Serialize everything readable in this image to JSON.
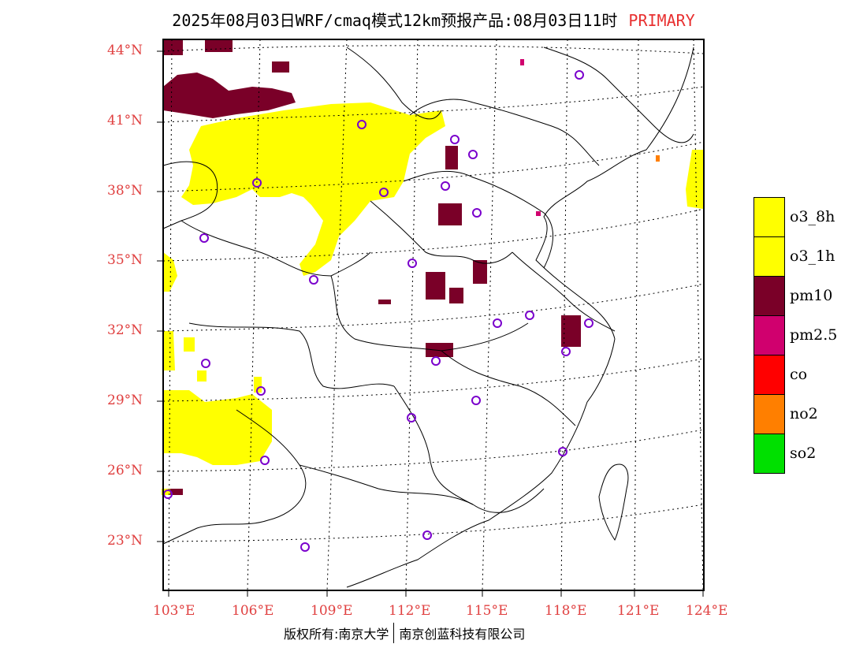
{
  "title": {
    "main": "2025年08月03日WRF/cmaq模式12km预报产品:08月03日11时",
    "tag": "PRIMARY"
  },
  "axes": {
    "lat_labels": [
      "44°N",
      "41°N",
      "38°N",
      "35°N",
      "32°N",
      "29°N",
      "26°N",
      "23°N"
    ],
    "lon_labels": [
      "103°E",
      "106°E",
      "109°E",
      "112°E",
      "115°E",
      "118°E",
      "121°E",
      "124°E"
    ]
  },
  "legend": [
    {
      "label": "o3_8h",
      "color": "#ffff00"
    },
    {
      "label": "o3_1h",
      "color": "#ffff00"
    },
    {
      "label": "pm10",
      "color": "#7a0028"
    },
    {
      "label": "pm2.5",
      "color": "#d0006e"
    },
    {
      "label": "co",
      "color": "#ff0000"
    },
    {
      "label": "no2",
      "color": "#ff7f00"
    },
    {
      "label": "so2",
      "color": "#00e000"
    }
  ],
  "footer": {
    "left": "版权所有:南京大学",
    "right": "南京创蓝科技有限公司"
  },
  "colors": {
    "frame": "#000000",
    "axis_label": "#e04040",
    "station_circle": "#7a00cc"
  }
}
